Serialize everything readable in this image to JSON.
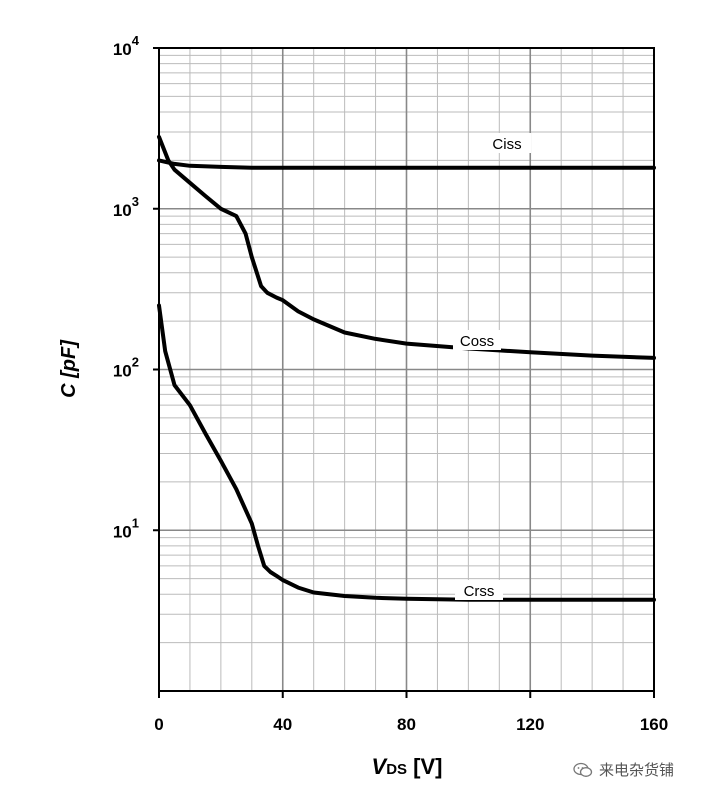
{
  "chart_data": {
    "type": "line",
    "xlabel": {
      "italic": "V",
      "sub": "DS",
      "rest": " [V]"
    },
    "ylabel": "C [pF]",
    "xlim": [
      0,
      160
    ],
    "ylim": [
      1,
      10000
    ],
    "yscale": "log",
    "grid": true,
    "x_ticks": [
      0,
      40,
      80,
      120,
      160
    ],
    "y_ticks": [
      {
        "value": 10,
        "base": "10",
        "exp": "1"
      },
      {
        "value": 100,
        "base": "10",
        "exp": "2"
      },
      {
        "value": 1000,
        "base": "10",
        "exp": "3"
      },
      {
        "value": 10000,
        "base": "10",
        "exp": "4"
      }
    ],
    "series": [
      {
        "name": "Ciss",
        "x": [
          0,
          5,
          10,
          20,
          30,
          40,
          60,
          80,
          100,
          120,
          140,
          160
        ],
        "y": [
          2000,
          1900,
          1850,
          1820,
          1800,
          1800,
          1800,
          1800,
          1800,
          1800,
          1800,
          1800
        ]
      },
      {
        "name": "Coss",
        "x": [
          0,
          3,
          5,
          10,
          15,
          20,
          25,
          28,
          30,
          33,
          35,
          38,
          40,
          45,
          50,
          60,
          70,
          80,
          100,
          120,
          140,
          160
        ],
        "y": [
          2800,
          2000,
          1750,
          1450,
          1200,
          1000,
          900,
          700,
          500,
          330,
          300,
          280,
          270,
          230,
          205,
          170,
          155,
          145,
          135,
          128,
          122,
          118
        ]
      },
      {
        "name": "Crss",
        "x": [
          0,
          2,
          5,
          10,
          15,
          20,
          25,
          30,
          32,
          34,
          36,
          38,
          40,
          45,
          50,
          60,
          70,
          80,
          100,
          120,
          140,
          160
        ],
        "y": [
          250,
          130,
          80,
          60,
          40,
          27,
          18,
          11,
          8,
          6,
          5.5,
          5.2,
          4.9,
          4.4,
          4.1,
          3.9,
          3.8,
          3.75,
          3.7,
          3.7,
          3.7,
          3.7
        ]
      }
    ],
    "annotations": [
      "Ciss",
      "Coss",
      "Crss"
    ]
  },
  "watermark": {
    "text": "来电杂货铺",
    "icon": "wechat-icon"
  }
}
